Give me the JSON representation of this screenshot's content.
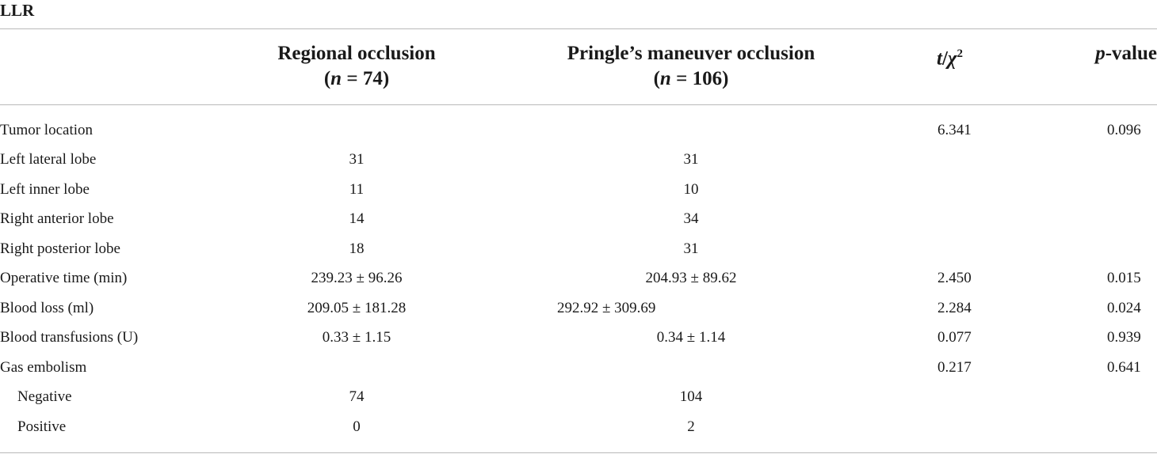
{
  "table": {
    "title": "LLR",
    "headers": {
      "col1_line1": "Regional occlusion",
      "col1_line2_pre": "(",
      "col1_line2_var": "n",
      "col1_line2_post": " = 74)",
      "col2_line1": "Pringle’s maneuver occlusion",
      "col2_line2_pre": "(",
      "col2_line2_var": "n",
      "col2_line2_post": " = 106)",
      "col3_var_t": "t",
      "col3_slash": "/",
      "col3_var_chi": "χ",
      "col3_sup": "2",
      "col4_var": "p",
      "col4_rest": "-value"
    },
    "rows": [
      {
        "label": "Tumor location",
        "regional": "",
        "pringle": "",
        "stat": "6.341",
        "p": "0.096"
      },
      {
        "label": "Left lateral lobe",
        "regional": "31",
        "pringle": "31",
        "stat": "",
        "p": ""
      },
      {
        "label": "Left inner lobe",
        "regional": "11",
        "pringle": "10",
        "stat": "",
        "p": ""
      },
      {
        "label": "Right anterior lobe",
        "regional": "14",
        "pringle": "34",
        "stat": "",
        "p": ""
      },
      {
        "label": "Right posterior lobe",
        "regional": "18",
        "pringle": "31",
        "stat": "",
        "p": ""
      },
      {
        "label": "Operative time (min)",
        "regional": "239.23 ± 96.26",
        "pringle": "204.93 ± 89.62",
        "stat": "2.450",
        "p": "0.015"
      },
      {
        "label": "Blood loss (ml)",
        "regional": "209.05 ± 181.28",
        "pringle": "292.92 ± 309.69",
        "stat": "2.284",
        "p": "0.024"
      },
      {
        "label": "Blood transfusions (U)",
        "regional": "0.33 ± 1.15",
        "pringle": "0.34 ± 1.14",
        "stat": "0.077",
        "p": "0.939"
      },
      {
        "label": "Gas embolism",
        "regional": "",
        "pringle": "",
        "stat": "0.217",
        "p": "0.641"
      },
      {
        "label": "Negative",
        "regional": "74",
        "pringle": "104",
        "stat": "",
        "p": ""
      },
      {
        "label": "Positive",
        "regional": "0",
        "pringle": "2",
        "stat": "",
        "p": ""
      }
    ]
  }
}
